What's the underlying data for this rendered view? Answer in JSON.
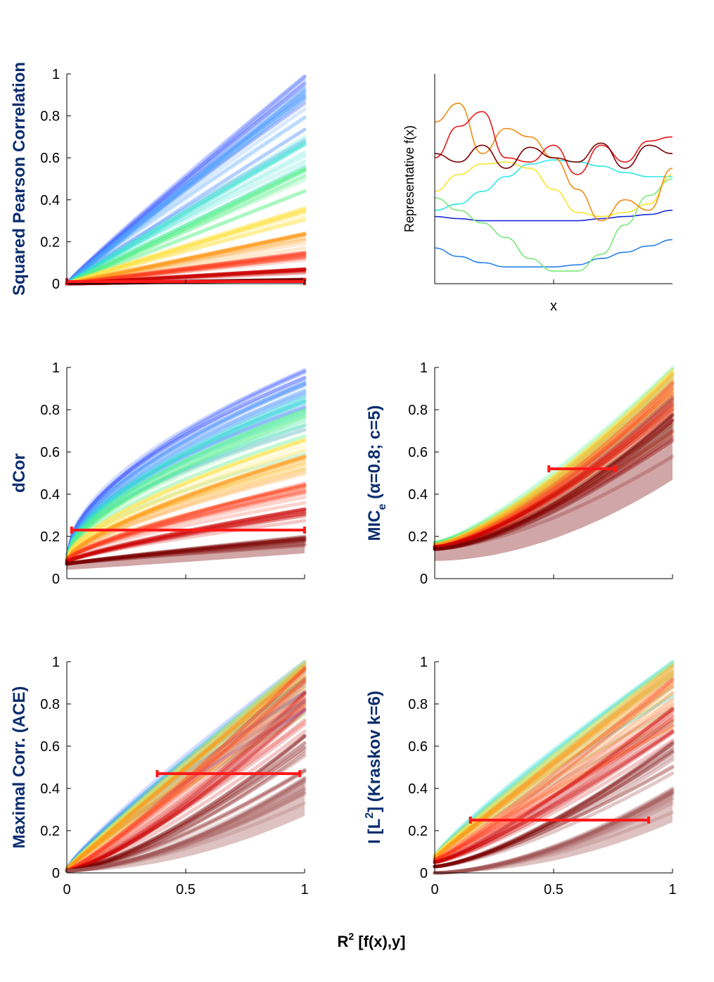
{
  "figure": {
    "shared_xlabel": "R",
    "shared_xlabel_sup": "2",
    "shared_xlabel_rest": " [f(x),y]"
  },
  "colors": {
    "label_blue": "#0a2d6e",
    "interval_red": "#ff1a1a",
    "palette": [
      "#3b5cff",
      "#4aa0ff",
      "#33e0d0",
      "#5cf08a",
      "#ffe24a",
      "#ff9a1a",
      "#ff3a1a",
      "#cc0000",
      "#7a0000"
    ]
  },
  "chart_data": [
    {
      "id": "pearson",
      "type": "area",
      "title": "",
      "ylabel": "Squared Pearson Correlation",
      "xlim": [
        0,
        1
      ],
      "ylim": [
        0,
        1
      ],
      "yticks": [
        "0",
        "0.2",
        "0.4",
        "0.6",
        "0.8",
        "1"
      ],
      "xticks": [
        "0",
        "0.5",
        "1"
      ],
      "show_xticklabels": false,
      "series": [
        {
          "name": "blue",
          "color": "#3b5cff",
          "start": 0.0,
          "end": 0.99,
          "power": 0.95
        },
        {
          "name": "light-blue",
          "color": "#4aa0ff",
          "start": 0.0,
          "end": 0.93,
          "power": 0.97
        },
        {
          "name": "cyan",
          "color": "#33e0d0",
          "start": 0.0,
          "end": 0.7,
          "power": 0.98
        },
        {
          "name": "green",
          "color": "#5cf08a",
          "start": 0.0,
          "end": 0.55,
          "power": 1.0
        },
        {
          "name": "yellow",
          "color": "#ffe24a",
          "start": 0.0,
          "end": 0.36,
          "power": 1.0
        },
        {
          "name": "orange",
          "color": "#ff9a1a",
          "start": 0.0,
          "end": 0.24,
          "power": 1.0
        },
        {
          "name": "red",
          "color": "#ff3a1a",
          "start": 0.0,
          "end": 0.15,
          "power": 1.0
        },
        {
          "name": "dark-red",
          "color": "#cc0000",
          "start": 0.0,
          "end": 0.07,
          "power": 1.0
        },
        {
          "name": "maroon",
          "color": "#7a0000",
          "start": 0.0,
          "end": 0.02,
          "power": 1.0
        }
      ],
      "interval": {
        "x1": 0.0,
        "x2": 1.0,
        "y": 0.01
      }
    },
    {
      "id": "representative",
      "type": "line",
      "title": "",
      "ylabel": "Representative f(x)",
      "xlabel": "x",
      "xlim": [
        0,
        1
      ],
      "ylim": [
        0,
        1
      ],
      "yticks": [],
      "xticks": [],
      "series": [
        {
          "name": "blue",
          "color": "#1a2dd6",
          "y": [
            0.32,
            0.31,
            0.3,
            0.3,
            0.3,
            0.3,
            0.3,
            0.31,
            0.32,
            0.33,
            0.35
          ]
        },
        {
          "name": "light-blue",
          "color": "#2a82e8",
          "y": [
            0.17,
            0.13,
            0.1,
            0.08,
            0.08,
            0.08,
            0.09,
            0.12,
            0.15,
            0.18,
            0.21
          ]
        },
        {
          "name": "cyan",
          "color": "#2ee6e6",
          "y": [
            0.35,
            0.38,
            0.44,
            0.51,
            0.57,
            0.59,
            0.58,
            0.56,
            0.53,
            0.51,
            0.51
          ]
        },
        {
          "name": "green",
          "color": "#7ae87a",
          "y": [
            0.41,
            0.35,
            0.29,
            0.22,
            0.12,
            0.06,
            0.06,
            0.14,
            0.28,
            0.42,
            0.5
          ]
        },
        {
          "name": "yellow",
          "color": "#f5e62e",
          "y": [
            0.44,
            0.52,
            0.57,
            0.58,
            0.55,
            0.45,
            0.34,
            0.32,
            0.34,
            0.38,
            0.52
          ]
        },
        {
          "name": "orange",
          "color": "#f08c14",
          "y": [
            0.77,
            0.86,
            0.62,
            0.74,
            0.7,
            0.6,
            0.45,
            0.3,
            0.4,
            0.35,
            0.55
          ]
        },
        {
          "name": "red",
          "color": "#e61a1a",
          "y": [
            0.6,
            0.75,
            0.82,
            0.6,
            0.58,
            0.66,
            0.52,
            0.66,
            0.58,
            0.68,
            0.7
          ]
        },
        {
          "name": "maroon",
          "color": "#7a0000",
          "y": [
            0.62,
            0.58,
            0.66,
            0.55,
            0.65,
            0.6,
            0.58,
            0.67,
            0.55,
            0.66,
            0.62
          ]
        }
      ]
    },
    {
      "id": "dcor",
      "type": "area",
      "title": "",
      "ylabel": "dCor",
      "xlim": [
        0,
        1
      ],
      "ylim": [
        0,
        1
      ],
      "yticks": [
        "0",
        "0.2",
        "0.4",
        "0.6",
        "0.8",
        "1"
      ],
      "xticks": [
        "0",
        "0.5",
        "1"
      ],
      "show_xticklabels": false,
      "series": [
        {
          "name": "blue",
          "color": "#3b5cff",
          "start": 0.1,
          "end": 0.99,
          "power": 0.55
        },
        {
          "name": "light-blue",
          "color": "#4aa0ff",
          "start": 0.1,
          "end": 0.93,
          "power": 0.58
        },
        {
          "name": "cyan",
          "color": "#33e0d0",
          "start": 0.1,
          "end": 0.86,
          "power": 0.6
        },
        {
          "name": "green",
          "color": "#5cf08a",
          "start": 0.1,
          "end": 0.8,
          "power": 0.62
        },
        {
          "name": "yellow",
          "color": "#ffe24a",
          "start": 0.1,
          "end": 0.66,
          "power": 0.66
        },
        {
          "name": "orange",
          "color": "#ff9a1a",
          "start": 0.09,
          "end": 0.58,
          "power": 0.7
        },
        {
          "name": "red",
          "color": "#ff3a1a",
          "start": 0.09,
          "end": 0.45,
          "power": 0.75
        },
        {
          "name": "dark-red",
          "color": "#cc0000",
          "start": 0.08,
          "end": 0.33,
          "power": 0.8
        },
        {
          "name": "maroon",
          "color": "#7a0000",
          "start": 0.07,
          "end": 0.2,
          "power": 0.9
        }
      ],
      "interval": {
        "x1": 0.02,
        "x2": 1.0,
        "y": 0.23
      }
    },
    {
      "id": "mic",
      "type": "area",
      "title": "",
      "ylabel": "MIC",
      "ylabel_sub": "e",
      "ylabel_rest": "  (α=0.8; c=5)",
      "xlim": [
        0,
        1
      ],
      "ylim": [
        0,
        1
      ],
      "yticks": [
        "0",
        "0.2",
        "0.4",
        "0.6",
        "0.8",
        "1"
      ],
      "xticks": [
        "0",
        "0.5",
        "1"
      ],
      "show_xticklabels": false,
      "series": [
        {
          "name": "green",
          "color": "#5cf08a",
          "start": 0.17,
          "end": 1.0,
          "power": 1.35
        },
        {
          "name": "yellow",
          "color": "#ffe24a",
          "start": 0.16,
          "end": 0.99,
          "power": 1.38
        },
        {
          "name": "orange",
          "color": "#ff9a1a",
          "start": 0.16,
          "end": 0.97,
          "power": 1.4
        },
        {
          "name": "red",
          "color": "#ff3a1a",
          "start": 0.15,
          "end": 0.93,
          "power": 1.45
        },
        {
          "name": "dark-red",
          "color": "#cc0000",
          "start": 0.15,
          "end": 0.86,
          "power": 1.5
        },
        {
          "name": "maroon",
          "color": "#7a0000",
          "start": 0.14,
          "end": 0.78,
          "power": 1.55
        }
      ],
      "interval": {
        "x1": 0.48,
        "x2": 0.76,
        "y": 0.52
      }
    },
    {
      "id": "ace",
      "type": "area",
      "title": "",
      "ylabel": "Maximal Corr. (ACE)",
      "xlim": [
        0,
        1
      ],
      "ylim": [
        0,
        1
      ],
      "yticks": [
        "0",
        "0.2",
        "0.4",
        "0.6",
        "0.8",
        "1"
      ],
      "xticks": [
        "0",
        "0.5",
        "1"
      ],
      "show_xticklabels": true,
      "series": [
        {
          "name": "blue",
          "color": "#3b5cff",
          "start": 0.02,
          "end": 1.0,
          "power": 0.88
        },
        {
          "name": "cyan",
          "color": "#33e0d0",
          "start": 0.02,
          "end": 1.0,
          "power": 0.92
        },
        {
          "name": "yellow",
          "color": "#ffe24a",
          "start": 0.02,
          "end": 1.0,
          "power": 0.96
        },
        {
          "name": "orange",
          "color": "#ff9a1a",
          "start": 0.02,
          "end": 0.99,
          "power": 1.0
        },
        {
          "name": "red",
          "color": "#ff3a1a",
          "start": 0.01,
          "end": 0.97,
          "power": 1.15
        },
        {
          "name": "dark-red",
          "color": "#cc0000",
          "start": 0.01,
          "end": 0.85,
          "power": 1.3
        },
        {
          "name": "maroon",
          "color": "#7a0000",
          "start": 0.01,
          "end": 0.65,
          "power": 1.45
        },
        {
          "name": "maroon-light",
          "color": "#a05050",
          "start": 0.01,
          "end": 0.45,
          "power": 1.6
        }
      ],
      "interval": {
        "x1": 0.38,
        "x2": 0.98,
        "y": 0.47
      }
    },
    {
      "id": "mi",
      "type": "area",
      "title": "",
      "ylabel": "I [L",
      "ylabel_sup": "2",
      "ylabel_rest": "]  (Kraskov k=6)",
      "xlim": [
        0,
        1
      ],
      "ylim": [
        0,
        1
      ],
      "yticks": [
        "0",
        "0.2",
        "0.4",
        "0.6",
        "0.8",
        "1"
      ],
      "xticks": [
        "0",
        "0.5",
        "1"
      ],
      "show_xticklabels": true,
      "series": [
        {
          "name": "cyan",
          "color": "#33e0d0",
          "start": 0.08,
          "end": 1.0,
          "power": 0.9
        },
        {
          "name": "yellow",
          "color": "#ffe24a",
          "start": 0.08,
          "end": 0.99,
          "power": 0.93
        },
        {
          "name": "orange",
          "color": "#ff9a1a",
          "start": 0.07,
          "end": 0.98,
          "power": 0.98
        },
        {
          "name": "red",
          "color": "#ff3a1a",
          "start": 0.06,
          "end": 0.92,
          "power": 1.1
        },
        {
          "name": "dark-red",
          "color": "#cc0000",
          "start": 0.05,
          "end": 0.78,
          "power": 1.25
        },
        {
          "name": "maroon",
          "color": "#7a0000",
          "start": 0.03,
          "end": 0.62,
          "power": 1.4
        },
        {
          "name": "maroon-light",
          "color": "#a05050",
          "start": 0.0,
          "end": 0.4,
          "power": 1.7
        }
      ],
      "interval": {
        "x1": 0.15,
        "x2": 0.9,
        "y": 0.25
      }
    }
  ]
}
